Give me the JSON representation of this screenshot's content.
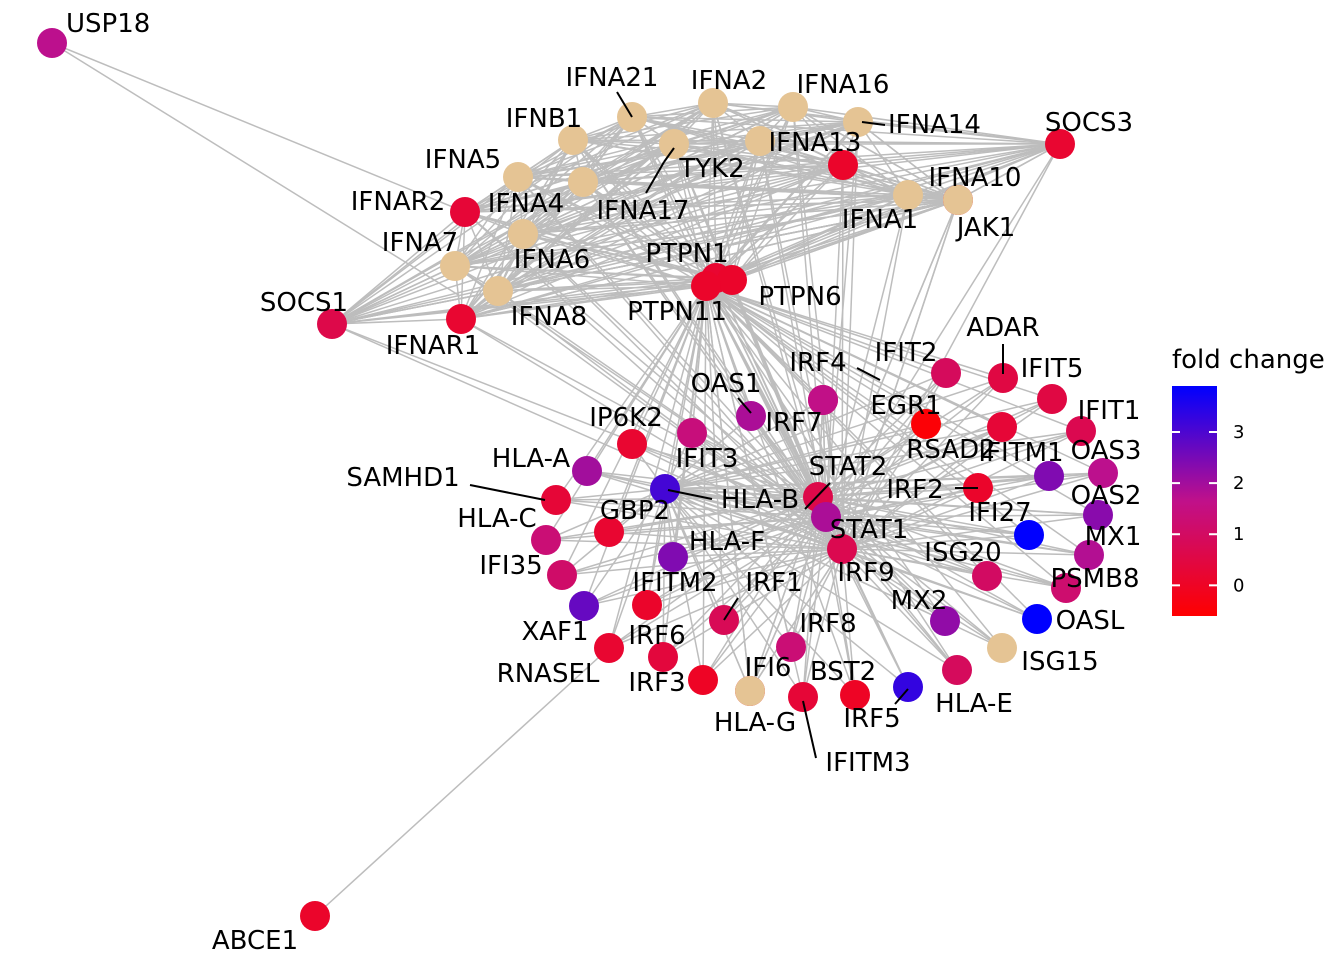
{
  "legend": {
    "title": "fold change",
    "ticks": [
      "3",
      "2",
      "1",
      "0"
    ],
    "tick_values": [
      3,
      2,
      1,
      0
    ],
    "min": -0.6,
    "max": 3.9,
    "low_color": "#ff0000",
    "high_color": "#0000ff"
  },
  "colors": {
    "edge": "#bdbdbd",
    "no_value_node": "#e5c494"
  },
  "hub_genes": [
    "IRF9",
    "STAT1",
    "STAT2",
    "HLA-B",
    "PTPN11"
  ],
  "genes": [
    {
      "name": "USP18",
      "fc": 1.7
    },
    {
      "name": "IFNA21",
      "fc": null
    },
    {
      "name": "IFNA2",
      "fc": null
    },
    {
      "name": "IFNA16",
      "fc": null
    },
    {
      "name": "IFNB1",
      "fc": null
    },
    {
      "name": "IFNA14",
      "fc": null
    },
    {
      "name": "SOCS3",
      "fc": 0.2
    },
    {
      "name": "IFNA13",
      "fc": 0.1
    },
    {
      "name": "IFNA5",
      "fc": null
    },
    {
      "name": "TYK2",
      "fc": null
    },
    {
      "name": "IFNAR2",
      "fc": 0.3
    },
    {
      "name": "IFNA4",
      "fc": null
    },
    {
      "name": "IFNA17",
      "fc": null
    },
    {
      "name": "IFNA10",
      "fc": 0.2
    },
    {
      "name": "IFNA1",
      "fc": null
    },
    {
      "name": "JAK1",
      "fc": null
    },
    {
      "name": "IFNA7",
      "fc": null
    },
    {
      "name": "IFNA6",
      "fc": null
    },
    {
      "name": "PTPN1",
      "fc": 0.2
    },
    {
      "name": "SOCS1",
      "fc": 0.6
    },
    {
      "name": "PTPN6",
      "fc": 0.1
    },
    {
      "name": "IFNA8",
      "fc": null
    },
    {
      "name": "PTPN11",
      "fc": 0.1
    },
    {
      "name": "IFNAR1",
      "fc": 0.2
    },
    {
      "name": "ADAR",
      "fc": 0.5
    },
    {
      "name": "IFIT2",
      "fc": 0.9
    },
    {
      "name": "IRF4",
      "fc": 0.5
    },
    {
      "name": "IFIT5",
      "fc": 0.5
    },
    {
      "name": "EGR1",
      "fc": -0.5
    },
    {
      "name": "OAS1",
      "fc": 1.9
    },
    {
      "name": "IFIT1",
      "fc": 0.7
    },
    {
      "name": "IRF7",
      "fc": 1.6
    },
    {
      "name": "IP6K2",
      "fc": 0.2
    },
    {
      "name": "RSAD2",
      "fc": 0.3
    },
    {
      "name": "IFITM1",
      "fc": 2.4
    },
    {
      "name": "OAS3",
      "fc": 1.7
    },
    {
      "name": "HLA-A",
      "fc": 2.0
    },
    {
      "name": "IFIT3",
      "fc": 1.4
    },
    {
      "name": "STAT2",
      "fc": 0.6
    },
    {
      "name": "SAMHD1",
      "fc": 0.3
    },
    {
      "name": "IRF2",
      "fc": 0.1
    },
    {
      "name": "HLA-B",
      "fc": 3.1
    },
    {
      "name": "OAS2",
      "fc": 2.3
    },
    {
      "name": "IFI27",
      "fc": 3.9
    },
    {
      "name": "GBP2",
      "fc": 0.2
    },
    {
      "name": "HLA-C",
      "fc": 1.3
    },
    {
      "name": "STAT1",
      "fc": 1.9
    },
    {
      "name": "MX1",
      "fc": 1.8
    },
    {
      "name": "HLA-F",
      "fc": 2.4
    },
    {
      "name": "IRF9",
      "fc": 0.7
    },
    {
      "name": "ISG20",
      "fc": 1.0
    },
    {
      "name": "IFI35",
      "fc": 1.1
    },
    {
      "name": "PSMB8",
      "fc": 1.2
    },
    {
      "name": "IFITM2",
      "fc": 0.1
    },
    {
      "name": "IRF1",
      "fc": 0.8
    },
    {
      "name": "XAF1",
      "fc": 2.7
    },
    {
      "name": "MX2",
      "fc": 2.2
    },
    {
      "name": "OASL",
      "fc": 3.9
    },
    {
      "name": "IRF8",
      "fc": 1.3
    },
    {
      "name": "IRF6",
      "fc": 0.4
    },
    {
      "name": "ISG15",
      "fc": null
    },
    {
      "name": "RNASEL",
      "fc": 0.2
    },
    {
      "name": "IFI6",
      "fc": 0.1
    },
    {
      "name": "BST2",
      "fc": 0.0
    },
    {
      "name": "IRF3",
      "fc": 0.0
    },
    {
      "name": "HLA-E",
      "fc": 0.9
    },
    {
      "name": "IRF5",
      "fc": 3.3
    },
    {
      "name": "HLA-G",
      "fc": null
    },
    {
      "name": "IFITM3",
      "fc": 0.3
    },
    {
      "name": "ABCE1",
      "fc": 0.1
    }
  ]
}
